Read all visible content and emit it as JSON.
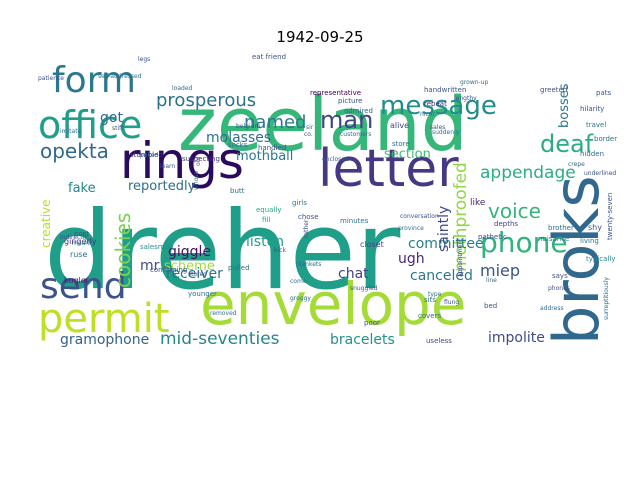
{
  "chart_data": {
    "type": "wordcloud",
    "title": "1942-09-25",
    "colormap": "viridis",
    "background": "#ffffff",
    "words": [
      {
        "text": "dreher",
        "color": "#1f9e89"
      },
      {
        "text": "zeeland",
        "color": "#35b779"
      },
      {
        "text": "envelope",
        "color": "#a5db36"
      },
      {
        "text": "broks",
        "color": "#31688e"
      },
      {
        "text": "letter",
        "color": "#443983"
      },
      {
        "text": "rings",
        "color": "#2a0a5e"
      },
      {
        "text": "office",
        "color": "#1f9e89"
      },
      {
        "text": "form",
        "color": "#2a788e"
      },
      {
        "text": "permit",
        "color": "#bddf26"
      },
      {
        "text": "send",
        "color": "#3b528b"
      },
      {
        "text": "message",
        "color": "#228c8d"
      },
      {
        "text": "phone",
        "color": "#2fb47c"
      },
      {
        "text": "man",
        "color": "#414487"
      },
      {
        "text": "deaf",
        "color": "#27ad81"
      },
      {
        "text": "voice",
        "color": "#35b779"
      },
      {
        "text": "opekta",
        "color": "#31688e"
      },
      {
        "text": "named",
        "color": "#2a788e"
      },
      {
        "text": "prosperous",
        "color": "#2c728e"
      },
      {
        "text": "cookies",
        "color": "#7ad151"
      },
      {
        "text": "appendage",
        "color": "#29af7f"
      },
      {
        "text": "mothproofed",
        "color": "#8fd744"
      },
      {
        "text": "gramophone",
        "color": "#34618d"
      },
      {
        "text": "mid-seventies",
        "color": "#25848e"
      },
      {
        "text": "bracelets",
        "color": "#21918c"
      },
      {
        "text": "impolite",
        "color": "#3e4a89"
      },
      {
        "text": "receiver",
        "color": "#2c728e"
      },
      {
        "text": "canceled",
        "color": "#2a768e"
      },
      {
        "text": "miep",
        "color": "#3b528b"
      },
      {
        "text": "chat",
        "color": "#414487"
      },
      {
        "text": "giggle",
        "color": "#471063"
      },
      {
        "text": "listen",
        "color": "#1f9e89"
      },
      {
        "text": "committee",
        "color": "#277f8e"
      },
      {
        "text": "ugh",
        "color": "#482878"
      },
      {
        "text": "saintly",
        "color": "#3e4a89"
      },
      {
        "text": "reportedly",
        "color": "#2e6e8e"
      },
      {
        "text": "fake",
        "color": "#25858e"
      },
      {
        "text": "scheme",
        "color": "#a0da39"
      },
      {
        "text": "molasses",
        "color": "#2e6e8e"
      },
      {
        "text": "mothball",
        "color": "#2a788e"
      },
      {
        "text": "section",
        "color": "#3fbc73"
      },
      {
        "text": "got",
        "color": "#31688e"
      },
      {
        "text": "mr",
        "color": "#3e4a89"
      },
      {
        "text": "bosses",
        "color": "#2a788e"
      },
      {
        "text": "creative",
        "color": "#b5de2b"
      },
      {
        "text": "gingerly",
        "color": "#46327e"
      },
      {
        "text": "kugler",
        "color": "#481d6f"
      },
      {
        "text": "ruse",
        "color": "#2e6e8e"
      },
      {
        "text": "salesman",
        "color": "#21918c"
      },
      {
        "text": "confirming",
        "color": "#3b528b"
      },
      {
        "text": "pulled",
        "color": "#2e6e8e"
      },
      {
        "text": "closet",
        "color": "#414487"
      },
      {
        "text": "pathetic",
        "color": "#3b528b"
      },
      {
        "text": "brother",
        "color": "#2c728e"
      },
      {
        "text": "depths",
        "color": "#414487"
      },
      {
        "text": "nuisance",
        "color": "#2a788e"
      },
      {
        "text": "living",
        "color": "#2a788e"
      },
      {
        "text": "typically",
        "color": "#23898e"
      },
      {
        "text": "shy",
        "color": "#3b528b"
      },
      {
        "text": "like",
        "color": "#482878"
      },
      {
        "text": "minutes",
        "color": "#2a788e"
      },
      {
        "text": "equally",
        "color": "#27ad81"
      },
      {
        "text": "fill",
        "color": "#22a884"
      },
      {
        "text": "girls",
        "color": "#2a788e"
      },
      {
        "text": "chose",
        "color": "#3b528b"
      },
      {
        "text": "stumbled",
        "color": "#482878"
      },
      {
        "text": "suspecting",
        "color": "#46327e"
      },
      {
        "text": "socks",
        "color": "#2e6e8e"
      },
      {
        "text": "picture",
        "color": "#3b528b"
      },
      {
        "text": "alive",
        "color": "#414487"
      },
      {
        "text": "store",
        "color": "#2e6e8e"
      },
      {
        "text": "repeat",
        "color": "#46327e"
      },
      {
        "text": "handwritten",
        "color": "#3b528b"
      },
      {
        "text": "representative",
        "color": "#440154"
      },
      {
        "text": "admired",
        "color": "#2e6e8e"
      },
      {
        "text": "greeted",
        "color": "#3b528b"
      },
      {
        "text": "hilarity",
        "color": "#3b528b"
      },
      {
        "text": "travel",
        "color": "#2a788e"
      },
      {
        "text": "pats",
        "color": "#3b528b"
      },
      {
        "text": "border",
        "color": "#2e6e8e"
      },
      {
        "text": "hidden",
        "color": "#2e6e8e"
      },
      {
        "text": "twenty-seven",
        "color": "#3b528b"
      },
      {
        "text": "surreptitiously",
        "color": "#2e6e8e"
      },
      {
        "text": "appointment",
        "color": "#414487"
      },
      {
        "text": "covers",
        "color": "#2e6e8e"
      },
      {
        "text": "poor",
        "color": "#3b528b"
      },
      {
        "text": "useless",
        "color": "#3e4a89"
      },
      {
        "text": "sits",
        "color": "#2e6e8e"
      },
      {
        "text": "bed",
        "color": "#3b528b"
      },
      {
        "text": "says",
        "color": "#3b528b"
      },
      {
        "text": "younger",
        "color": "#2e6e8e"
      },
      {
        "text": "stored",
        "color": "#3b528b"
      },
      {
        "text": "removed",
        "color": "#2e6e8e"
      },
      {
        "text": "handled",
        "color": "#3b528b"
      },
      {
        "text": "butt",
        "color": "#2e6e8e"
      },
      {
        "text": "post",
        "color": "#3b528b"
      },
      {
        "text": "imitate",
        "color": "#2e6e8e"
      },
      {
        "text": "patience",
        "color": "#3b528b"
      },
      {
        "text": "loaded",
        "color": "#2e6e8e"
      },
      {
        "text": "legs",
        "color": "#3b528b"
      },
      {
        "text": "self-addressed",
        "color": "#2e6e8e"
      },
      {
        "text": "eat friend",
        "color": "#3b528b"
      },
      {
        "text": "customers",
        "color": "#2e6e8e"
      },
      {
        "text": "enclosed",
        "color": "#3b528b"
      },
      {
        "text": "poked",
        "color": "#2e6e8e"
      },
      {
        "text": "learn",
        "color": "#3b528b"
      },
      {
        "text": "groggy",
        "color": "#2e6e8e"
      },
      {
        "text": "snuggled",
        "color": "#3b528b"
      },
      {
        "text": "grown-up",
        "color": "#2e6e8e"
      },
      {
        "text": "lengthy",
        "color": "#3b528b"
      },
      {
        "text": "nicer",
        "color": "#2e6e8e"
      },
      {
        "text": "sales",
        "color": "#3b528b"
      },
      {
        "text": "province",
        "color": "#2e6e8e"
      },
      {
        "text": "conversation",
        "color": "#3b528b"
      },
      {
        "text": "mean.",
        "color": "#2e6e8e"
      },
      {
        "text": "indirectly",
        "color": "#3b528b"
      },
      {
        "text": "line",
        "color": "#2e6e8e"
      },
      {
        "text": "phones",
        "color": "#3b528b"
      },
      {
        "text": "address",
        "color": "#2e6e8e"
      },
      {
        "text": "kick",
        "color": "#3b528b"
      },
      {
        "text": "blankets",
        "color": "#2e6e8e"
      },
      {
        "text": "stiff",
        "color": "#3b528b"
      },
      {
        "text": "type",
        "color": "#2e6e8e"
      },
      {
        "text": "flung",
        "color": "#3b528b"
      },
      {
        "text": "suddenly",
        "color": "#2e6e8e"
      },
      {
        "text": "underlined",
        "color": "#3b528b"
      },
      {
        "text": "crepe",
        "color": "#2e6e8e"
      },
      {
        "text": "co.",
        "color": "#3b528b"
      },
      {
        "text": "sir",
        "color": "#2e6e8e"
      },
      {
        "text": "old",
        "color": "#3b528b"
      },
      {
        "text": "whose",
        "color": "#2e6e8e"
      },
      {
        "text": "rather",
        "color": "#3b528b"
      },
      {
        "text": "come",
        "color": "#2e6e8e"
      },
      {
        "text": "belgium",
        "color": "#3b528b"
      }
    ]
  }
}
